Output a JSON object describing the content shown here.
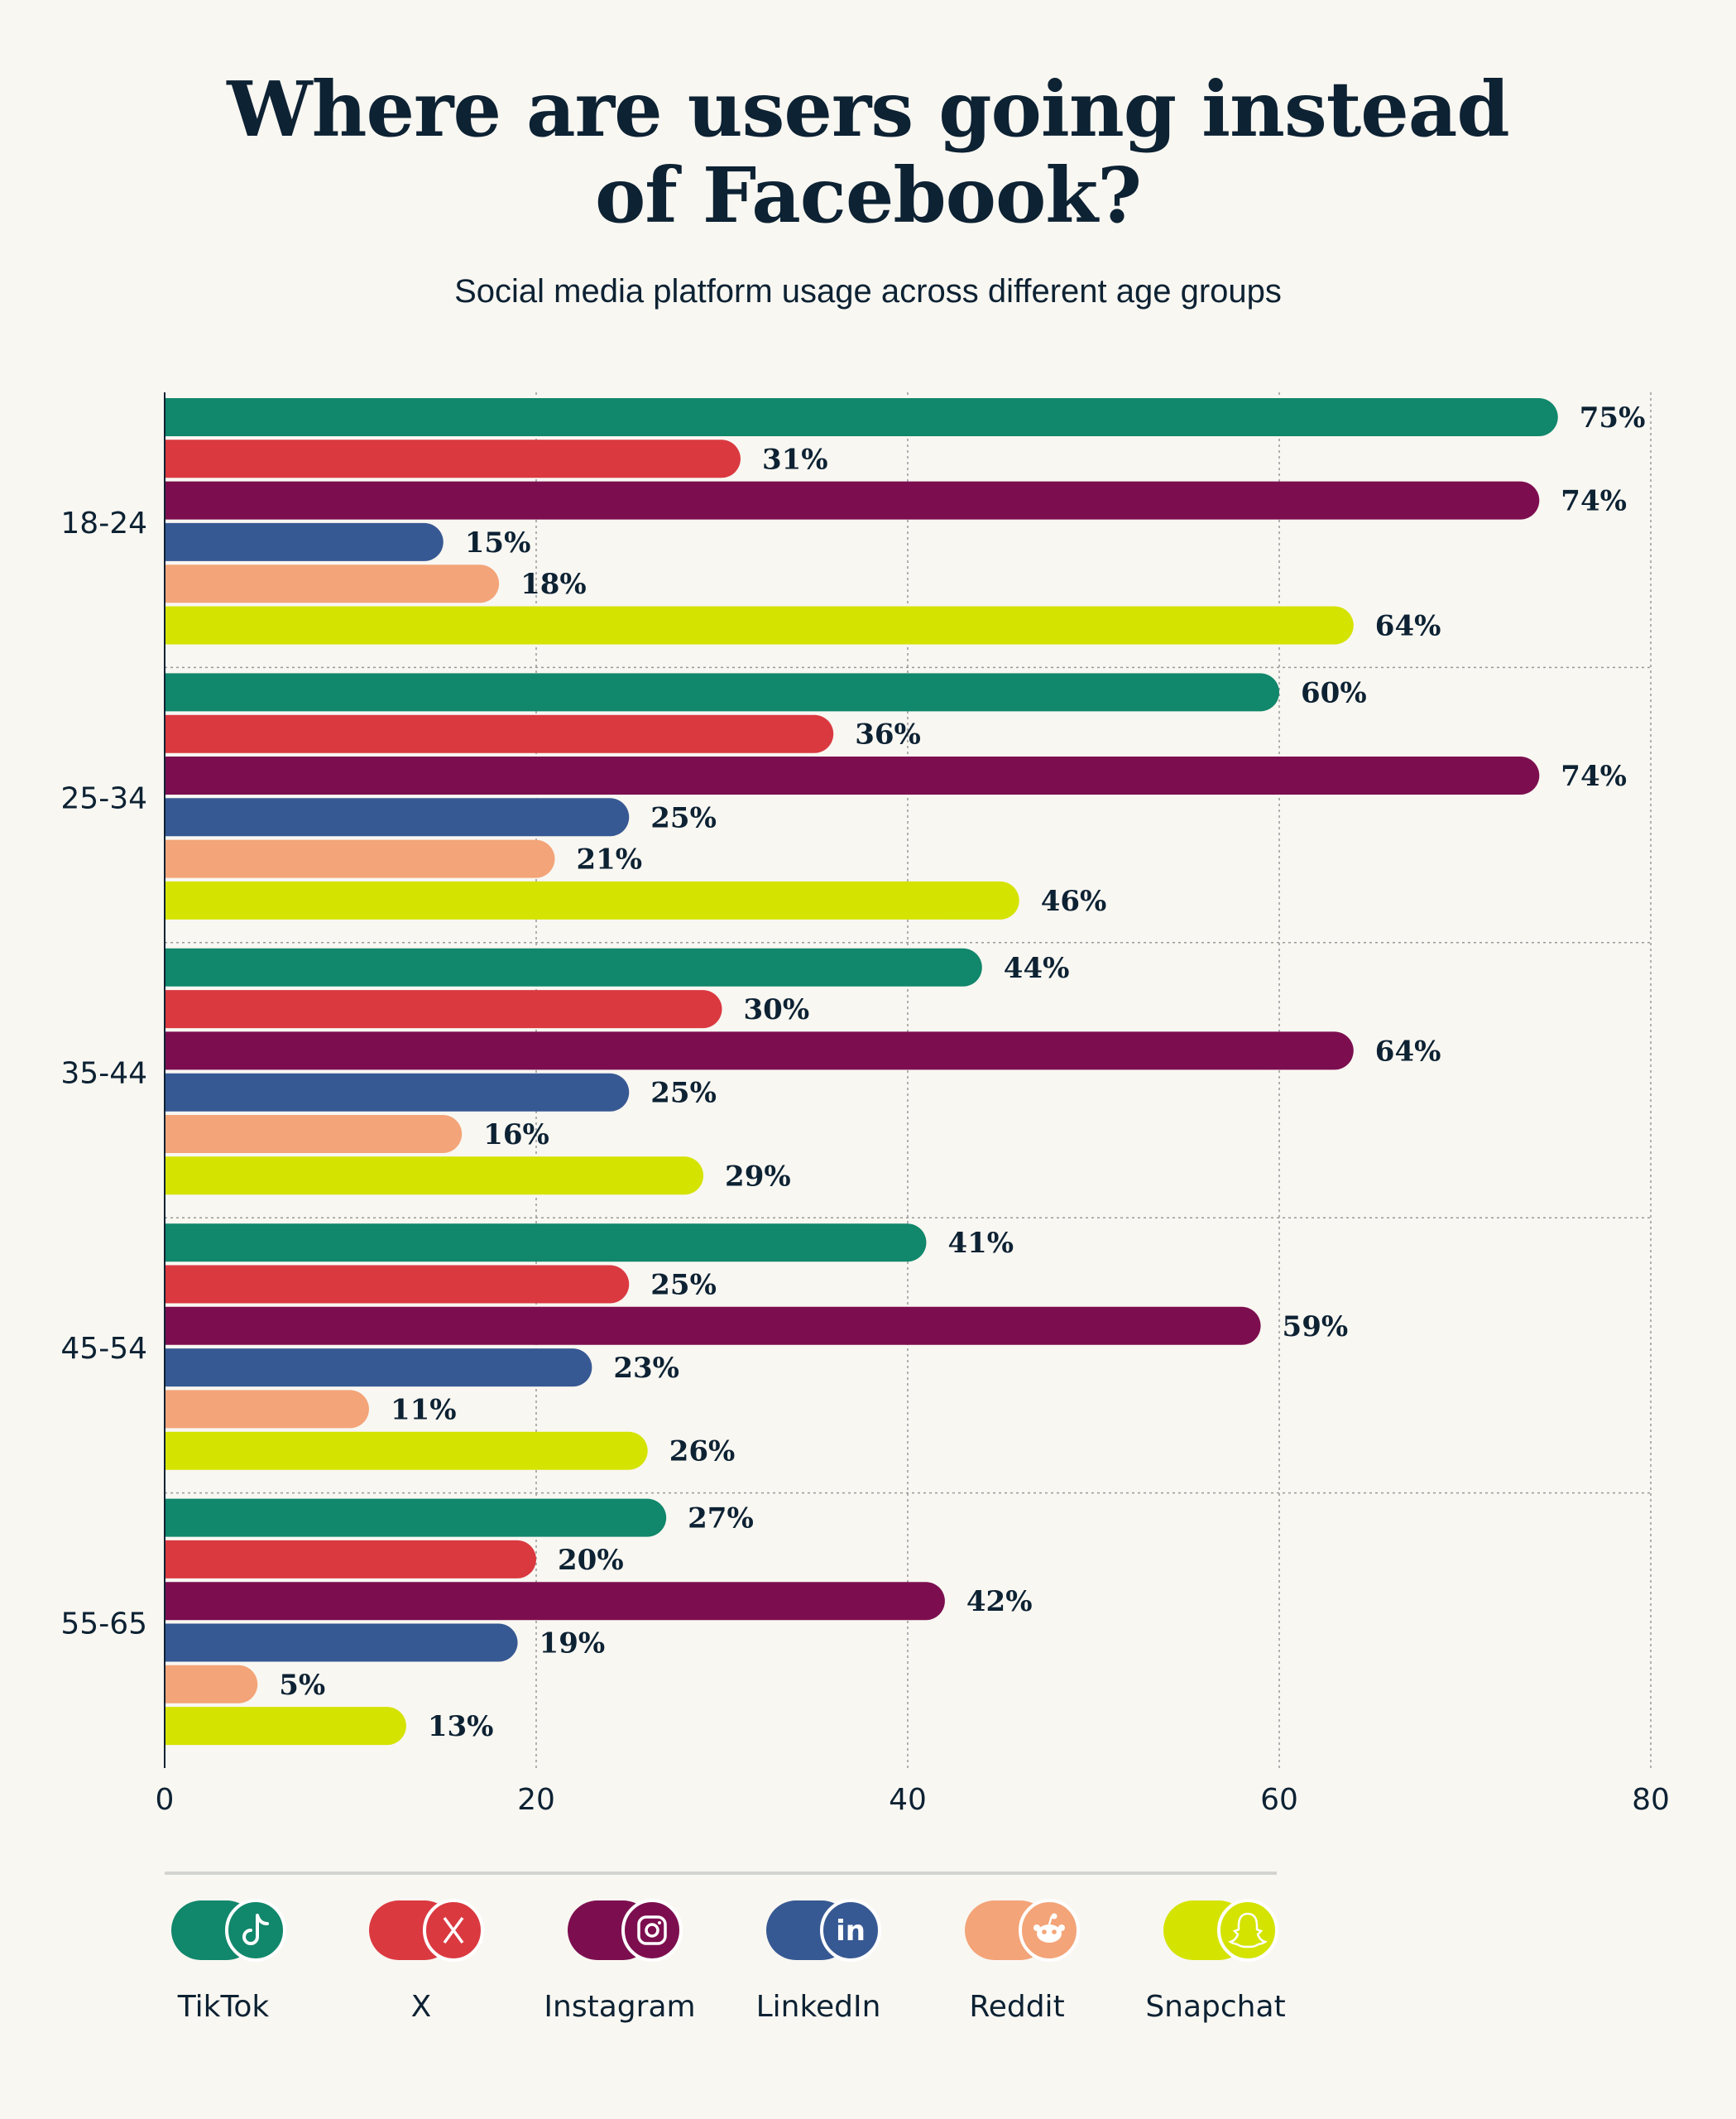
{
  "chart_data": {
    "type": "bar",
    "orientation": "horizontal",
    "title": "Where are users going instead of Facebook?",
    "subtitle": "Social media platform usage across different age groups",
    "categories": [
      "18-24",
      "25-34",
      "35-44",
      "45-54",
      "55-65"
    ],
    "series": [
      {
        "name": "TikTok",
        "color": "#11876b",
        "icon": "tiktok-icon",
        "values": [
          75,
          60,
          44,
          41,
          27
        ]
      },
      {
        "name": "X",
        "color": "#da3940",
        "icon": "x-logo-icon",
        "values": [
          31,
          36,
          30,
          25,
          20
        ]
      },
      {
        "name": "Instagram",
        "color": "#7c0e4f",
        "icon": "instagram-icon",
        "values": [
          74,
          74,
          64,
          59,
          42
        ]
      },
      {
        "name": "LinkedIn",
        "color": "#375993",
        "icon": "linkedin-icon",
        "values": [
          15,
          25,
          25,
          23,
          19
        ]
      },
      {
        "name": "Reddit",
        "color": "#f3a478",
        "icon": "reddit-icon",
        "values": [
          18,
          21,
          16,
          11,
          5
        ]
      },
      {
        "name": "Snapchat",
        "color": "#d4e300",
        "icon": "snapchat-icon",
        "values": [
          64,
          46,
          29,
          26,
          13
        ]
      }
    ],
    "value_suffix": "%",
    "xlim": [
      0,
      80
    ],
    "xticks": [
      "0",
      "20",
      "40",
      "60",
      "80"
    ],
    "grid": "dotted",
    "legend": "bottom"
  }
}
